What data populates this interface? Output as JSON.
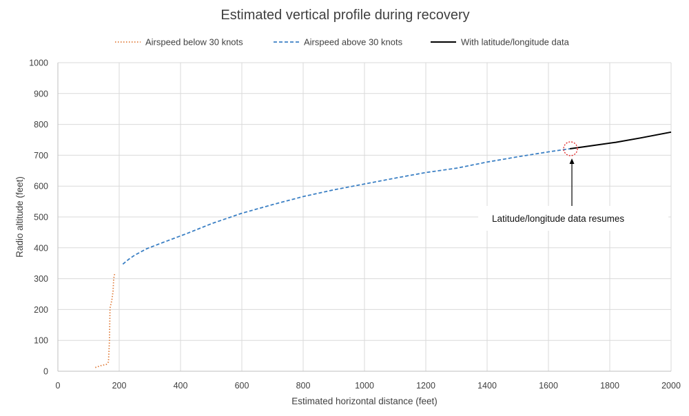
{
  "chart_data": {
    "type": "line",
    "title": "Estimated vertical profile during recovery",
    "xlabel": "Estimated horizontal distance (feet)",
    "ylabel": "Radio altitude (feet)",
    "xlim": [
      0,
      2000
    ],
    "ylim": [
      0,
      1000
    ],
    "x_ticks": [
      "0",
      "200",
      "400",
      "600",
      "800",
      "1000",
      "1200",
      "1400",
      "1600",
      "1800",
      "2000"
    ],
    "y_ticks": [
      "0",
      "100",
      "200",
      "300",
      "400",
      "500",
      "600",
      "700",
      "800",
      "900",
      "1000"
    ],
    "grid": true,
    "legend_position": "top",
    "series": [
      {
        "name": "Airspeed below 30 knots",
        "color": "#E07B39",
        "style": "dotted",
        "points": [
          [
            122,
            12
          ],
          [
            140,
            18
          ],
          [
            158,
            22
          ],
          [
            165,
            30
          ],
          [
            168,
            95
          ],
          [
            170,
            205
          ],
          [
            176,
            230
          ],
          [
            180,
            260
          ],
          [
            182,
            300
          ],
          [
            186,
            320
          ]
        ]
      },
      {
        "name": "Airspeed above 30 knots",
        "color": "#3A7FC4",
        "style": "dashed",
        "points": [
          [
            212,
            347
          ],
          [
            230,
            362
          ],
          [
            250,
            376
          ],
          [
            290,
            397
          ],
          [
            350,
            420
          ],
          [
            420,
            446
          ],
          [
            500,
            478
          ],
          [
            600,
            512
          ],
          [
            700,
            540
          ],
          [
            800,
            566
          ],
          [
            900,
            588
          ],
          [
            1000,
            607
          ],
          [
            1100,
            626
          ],
          [
            1200,
            644
          ],
          [
            1300,
            658
          ],
          [
            1400,
            678
          ],
          [
            1500,
            695
          ],
          [
            1600,
            711
          ],
          [
            1670,
            721
          ]
        ]
      },
      {
        "name": "With latitude/longitude data",
        "color": "#000000",
        "style": "solid",
        "points": [
          [
            1670,
            721
          ],
          [
            1720,
            728
          ],
          [
            1820,
            742
          ],
          [
            1900,
            756
          ],
          [
            2000,
            775
          ]
        ]
      }
    ],
    "annotations": [
      {
        "text": "Latitude/longitude data resumes",
        "point": [
          1672,
          721
        ]
      }
    ]
  }
}
